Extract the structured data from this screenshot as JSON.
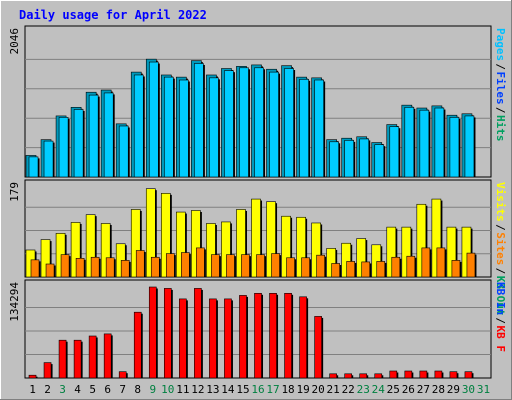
{
  "chart_data": {
    "type": "bar",
    "title": "Daily usage for April 2022",
    "categories": [
      "1",
      "2",
      "3",
      "4",
      "5",
      "6",
      "7",
      "8",
      "9",
      "10",
      "11",
      "12",
      "13",
      "14",
      "15",
      "16",
      "17",
      "18",
      "19",
      "20",
      "21",
      "22",
      "23",
      "24",
      "25",
      "26",
      "27",
      "28",
      "29",
      "30",
      "31"
    ],
    "weekend_categories": [
      "3",
      "9",
      "10",
      "16",
      "17",
      "23",
      "24",
      "30",
      "31"
    ],
    "panels": [
      {
        "id": "hits-files-pages",
        "ytick": "2046",
        "ymax": 2046,
        "legend": [
          {
            "label": "Pages",
            "color": "#00c0ff"
          },
          {
            "label": "Files",
            "color": "#0040ff"
          },
          {
            "label": "Hits",
            "color": "#00a060"
          }
        ],
        "series": [
          {
            "name": "Hits",
            "color": "#00aacc",
            "values": [
              300,
              520,
              850,
              970,
              1180,
              1210,
              740,
              1460,
              1640,
              1420,
              1390,
              1620,
              1420,
              1510,
              1540,
              1560,
              1500,
              1550,
              1390,
              1380,
              520,
              540,
              560,
              480,
              730,
              0,
              0,
              0,
              0,
              0,
              0
            ]
          },
          {
            "name": "Pages",
            "color": "#00ccff",
            "values": [
              280,
              500,
              830,
              940,
              1140,
              1170,
              710,
              1420,
              1600,
              1390,
              1350,
              1580,
              1380,
              1480,
              1520,
              1520,
              1460,
              1510,
              1360,
              1350,
              490,
              510,
              530,
              450,
              700,
              0,
              0,
              0,
              0,
              0,
              0
            ]
          }
        ],
        "series_late": [
          {
            "name": "Hits",
            "values": [
              0,
              0,
              0,
              0,
              0,
              0,
              0,
              0,
              0,
              0,
              0,
              0,
              0,
              0,
              0,
              0,
              0,
              0,
              0,
              0,
              0,
              0,
              0,
              0,
              0,
              1000,
              960,
              990,
              860,
              880,
              0
            ]
          },
          {
            "name": "Pages",
            "values": [
              0,
              0,
              0,
              0,
              0,
              0,
              0,
              0,
              0,
              0,
              0,
              0,
              0,
              0,
              0,
              0,
              0,
              0,
              0,
              0,
              0,
              0,
              0,
              0,
              0,
              970,
              930,
              960,
              830,
              850,
              0
            ]
          }
        ]
      },
      {
        "id": "visits-sites",
        "ytick": "179",
        "ymax": 179,
        "legend": [
          {
            "label": "Visits",
            "color": "#ffff00"
          },
          {
            "label": "Sites",
            "color": "#ff8000"
          },
          {
            "label": "KB Out",
            "color": "#00a060"
          }
        ],
        "series": [
          {
            "name": "Visits",
            "color": "#ffff00",
            "values": [
              52,
              72,
              84,
              105,
              120,
              103,
              64,
              130,
              170,
              161,
              125,
              128,
              103,
              106,
              130,
              150,
              145,
              117,
              115,
              104,
              55,
              65,
              74,
              62,
              96,
              96,
              140,
              150,
              96,
              96,
              0
            ]
          },
          {
            "name": "Sites",
            "color": "#ff8000",
            "values": [
              33,
              25,
              43,
              36,
              38,
              37,
              32,
              51,
              38,
              45,
              47,
              56,
              43,
              43,
              43,
              43,
              45,
              37,
              37,
              42,
              26,
              30,
              29,
              30,
              38,
              40,
              56,
              56,
              32,
              46,
              0
            ]
          }
        ]
      },
      {
        "id": "kb-in",
        "ytick": "134294",
        "ymax": 134294,
        "legend": [
          {
            "label": "KB In",
            "color": "#0040ff"
          },
          {
            "label": "KB F",
            "color": "#ff0000"
          }
        ],
        "series": [
          {
            "name": "KB F",
            "color": "#ff0000",
            "values": [
              4000,
              22000,
              54000,
              54000,
              60000,
              63000,
              9000,
              94000,
              130000,
              128000,
              113000,
              128000,
              113000,
              113000,
              118000,
              121000,
              121000,
              121000,
              116000,
              88000,
              6000,
              6000,
              6000,
              6000,
              10000,
              10000,
              10000,
              10000,
              9000,
              9000,
              0
            ]
          }
        ]
      }
    ]
  }
}
